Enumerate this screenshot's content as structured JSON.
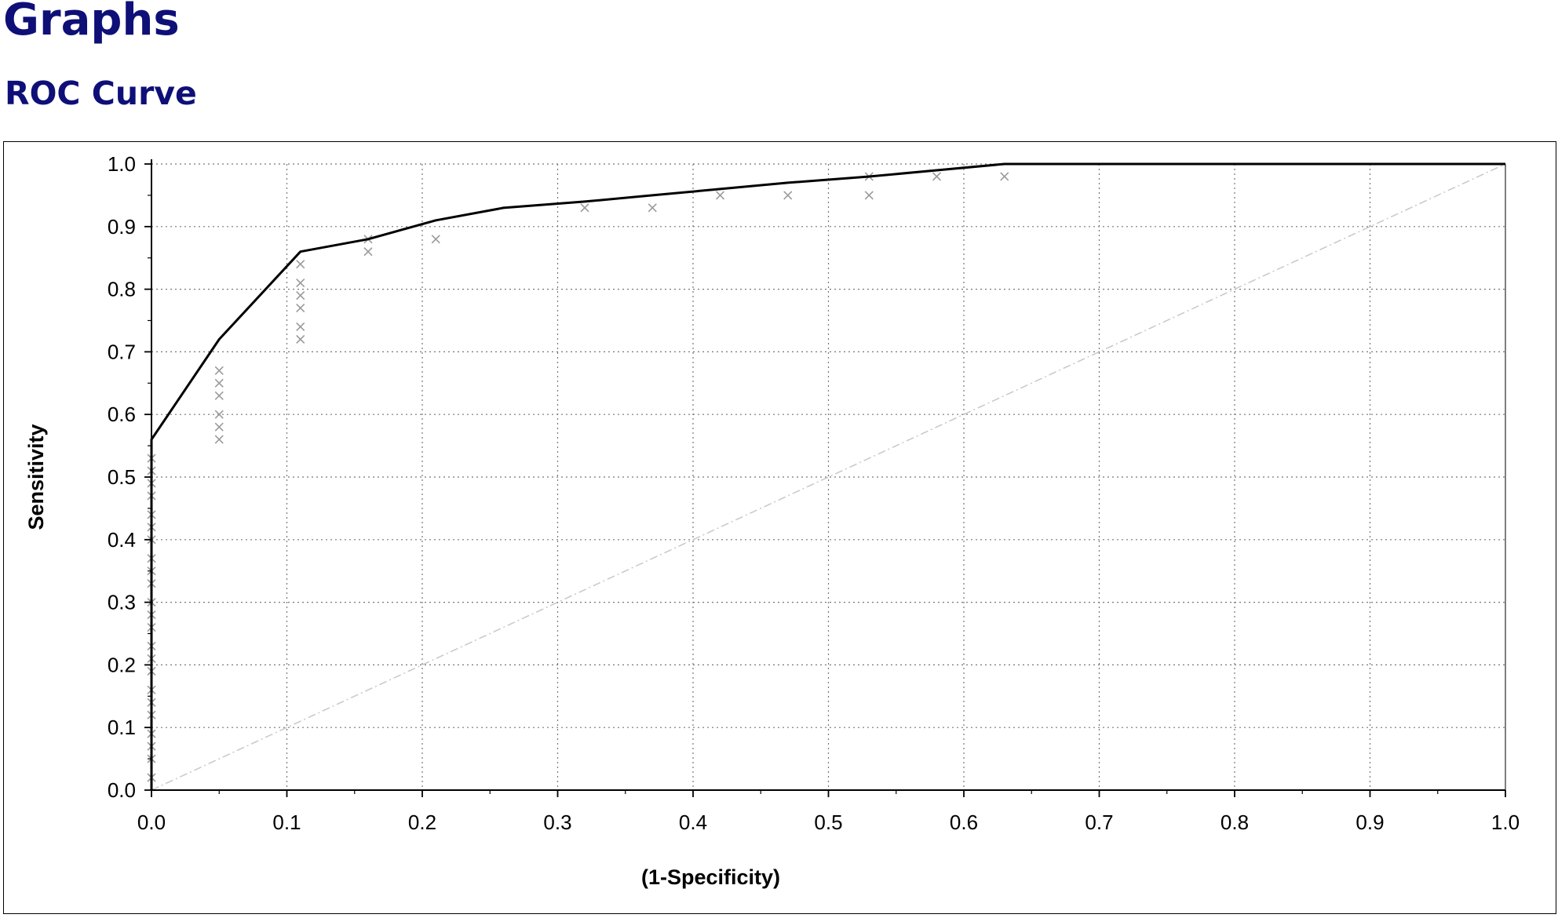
{
  "header": {
    "title": "Graphs",
    "subtitle": "ROC Curve"
  },
  "chart_data": {
    "type": "line",
    "title": "ROC Curve",
    "xlabel": "(1-Specificity)",
    "ylabel": "Sensitivity",
    "xlim": [
      0,
      1
    ],
    "ylim": [
      0,
      1
    ],
    "x_ticks": [
      "0.0",
      "0.1",
      "0.2",
      "0.3",
      "0.4",
      "0.5",
      "0.6",
      "0.7",
      "0.8",
      "0.9",
      "1.0"
    ],
    "y_ticks": [
      "0.0",
      "0.1",
      "0.2",
      "0.3",
      "0.4",
      "0.5",
      "0.6",
      "0.7",
      "0.8",
      "0.9",
      "1.0"
    ],
    "grid": true,
    "legend": "none",
    "series": [
      {
        "style": "solid line",
        "color": "#000000",
        "points": [
          [
            0.0,
            0.0
          ],
          [
            0.0,
            0.56
          ],
          [
            0.05,
            0.72
          ],
          [
            0.11,
            0.86
          ],
          [
            0.16,
            0.88
          ],
          [
            0.21,
            0.91
          ],
          [
            0.26,
            0.93
          ],
          [
            0.32,
            0.94
          ],
          [
            0.37,
            0.95
          ],
          [
            0.42,
            0.96
          ],
          [
            0.47,
            0.97
          ],
          [
            0.53,
            0.98
          ],
          [
            0.58,
            0.99
          ],
          [
            0.63,
            1.0
          ],
          [
            0.68,
            1.0
          ],
          [
            0.74,
            1.0
          ],
          [
            0.79,
            1.0
          ],
          [
            0.84,
            1.0
          ],
          [
            0.89,
            1.0
          ],
          [
            0.95,
            1.0
          ],
          [
            1.0,
            1.0
          ]
        ]
      },
      {
        "style": "x markers",
        "color": "#9a9a9a",
        "points": [
          [
            0.0,
            0.02
          ],
          [
            0.0,
            0.05
          ],
          [
            0.0,
            0.07
          ],
          [
            0.0,
            0.09
          ],
          [
            0.0,
            0.12
          ],
          [
            0.0,
            0.14
          ],
          [
            0.0,
            0.16
          ],
          [
            0.0,
            0.19
          ],
          [
            0.0,
            0.21
          ],
          [
            0.0,
            0.23
          ],
          [
            0.0,
            0.26
          ],
          [
            0.0,
            0.28
          ],
          [
            0.0,
            0.3
          ],
          [
            0.0,
            0.33
          ],
          [
            0.0,
            0.35
          ],
          [
            0.0,
            0.37
          ],
          [
            0.0,
            0.4
          ],
          [
            0.0,
            0.42
          ],
          [
            0.0,
            0.44
          ],
          [
            0.0,
            0.47
          ],
          [
            0.0,
            0.49
          ],
          [
            0.0,
            0.51
          ],
          [
            0.0,
            0.53
          ],
          [
            0.05,
            0.56
          ],
          [
            0.05,
            0.58
          ],
          [
            0.05,
            0.6
          ],
          [
            0.05,
            0.63
          ],
          [
            0.05,
            0.65
          ],
          [
            0.05,
            0.67
          ],
          [
            0.11,
            0.72
          ],
          [
            0.11,
            0.74
          ],
          [
            0.11,
            0.77
          ],
          [
            0.11,
            0.79
          ],
          [
            0.11,
            0.81
          ],
          [
            0.11,
            0.84
          ],
          [
            0.16,
            0.86
          ],
          [
            0.16,
            0.88
          ],
          [
            0.21,
            0.88
          ],
          [
            0.32,
            0.93
          ],
          [
            0.37,
            0.93
          ],
          [
            0.42,
            0.95
          ],
          [
            0.47,
            0.95
          ],
          [
            0.53,
            0.95
          ],
          [
            0.53,
            0.98
          ],
          [
            0.58,
            0.98
          ],
          [
            0.63,
            0.98
          ]
        ]
      },
      {
        "style": "dash-dot diagonal reference line",
        "color": "#c8c8c8",
        "points": [
          [
            0.0,
            0.0
          ],
          [
            1.0,
            1.0
          ]
        ]
      }
    ]
  }
}
